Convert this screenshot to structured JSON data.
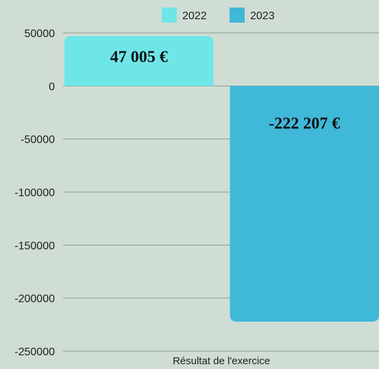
{
  "chart_data": {
    "type": "bar",
    "categories": [
      "Résultat de l'exercice"
    ],
    "series": [
      {
        "name": "2022",
        "values": [
          47005
        ],
        "color": "#6ee6e8",
        "label": "47 005 €"
      },
      {
        "name": "2023",
        "values": [
          -222207
        ],
        "color": "#40b8d8",
        "label": "-222 207 €"
      }
    ],
    "yticks": [
      "50000",
      "0",
      "-50000",
      "-100000",
      "-150000",
      "-200000",
      "-250000"
    ],
    "ylim": [
      -250000,
      50000
    ],
    "grid": true,
    "legend": "top-center"
  }
}
